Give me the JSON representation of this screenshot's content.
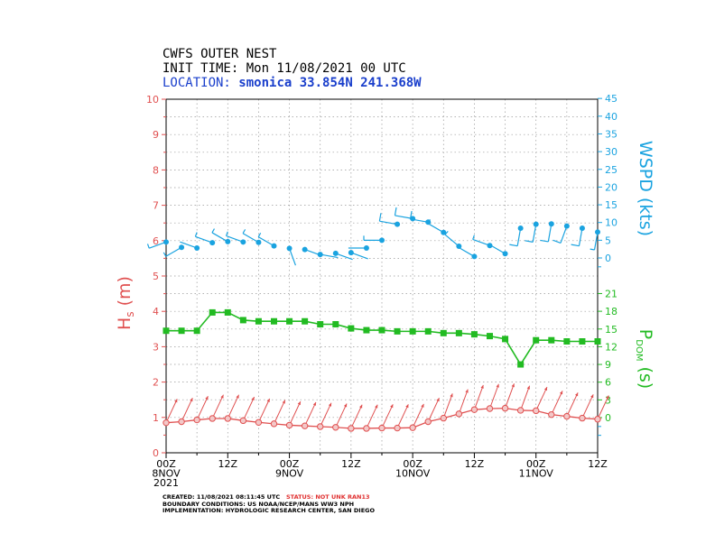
{
  "header": {
    "line1": "CWFS OUTER NEST",
    "line2": "INIT TIME: Mon 11/08/2021 00 UTC",
    "location_label": "LOCATION:",
    "location_name": "smonica",
    "location_coords": "33.854N 241.368W"
  },
  "footer": {
    "created": "CREATED: 11/08/2021 08:11:45 UTC",
    "status": "STATUS: NOT UNK RAN13",
    "boundary": "BOUNDARY CONDITIONS: US NOAA/NCEP/MANS WW3 NPH",
    "implementation": "IMPLEMENTATION: HYDROLOGIC RESEARCH CENTER, SAN DIEGO"
  },
  "colors": {
    "hs": "#e05050",
    "wind": "#1aa3e0",
    "period": "#22bb22",
    "location": "#1a3fcc",
    "grid": "#999999"
  },
  "chart_data": {
    "type": "line",
    "x_tick_labels": [
      {
        "hour": 0,
        "lines": [
          "00Z",
          "8NOV",
          "2021"
        ]
      },
      {
        "hour": 12,
        "lines": [
          "12Z"
        ]
      },
      {
        "hour": 24,
        "lines": [
          "00Z",
          "9NOV"
        ]
      },
      {
        "hour": 36,
        "lines": [
          "12Z"
        ]
      },
      {
        "hour": 48,
        "lines": [
          "00Z",
          "10NOV"
        ]
      },
      {
        "hour": 60,
        "lines": [
          "12Z"
        ]
      },
      {
        "hour": 72,
        "lines": [
          "00Z",
          "11NOV"
        ]
      },
      {
        "hour": 84,
        "lines": [
          "12Z"
        ]
      }
    ],
    "xlim_hours": [
      0,
      84
    ],
    "left_axis": {
      "label": "H",
      "label_sub": "s",
      "label_unit": "(m)",
      "ylim": [
        0,
        10
      ],
      "ticks": [
        0,
        1,
        2,
        3,
        4,
        5,
        6,
        7,
        8,
        9,
        10
      ]
    },
    "period_axis": {
      "label": "P",
      "label_sub": "DOM",
      "label_unit": "(s)",
      "ticks": [
        "0",
        "3",
        "6",
        "9",
        "12",
        "15",
        "18",
        "21"
      ]
    },
    "wind_axis": {
      "label": "WSPD",
      "label_unit": "(kts)",
      "ticks": [
        "0",
        "5",
        "10",
        "15",
        "20",
        "25",
        "30",
        "35",
        "40",
        "45"
      ]
    },
    "series": [
      {
        "name": "Hs",
        "hours": [
          0,
          3,
          6,
          9,
          12,
          15,
          18,
          21,
          24,
          27,
          30,
          33,
          36,
          39,
          42,
          45,
          48,
          51,
          54,
          57,
          60,
          63,
          66,
          69,
          72,
          75,
          78,
          81,
          84
        ],
        "values": [
          0.85,
          0.88,
          0.93,
          0.97,
          0.97,
          0.91,
          0.86,
          0.82,
          0.78,
          0.76,
          0.74,
          0.72,
          0.69,
          0.69,
          0.7,
          0.7,
          0.71,
          0.88,
          0.98,
          1.1,
          1.22,
          1.25,
          1.26,
          1.2,
          1.19,
          1.08,
          1.03,
          0.98,
          0.95
        ],
        "arrow_direction_deg": [
          25,
          25,
          25,
          25,
          25,
          25,
          25,
          25,
          25,
          25,
          25,
          25,
          25,
          25,
          25,
          25,
          25,
          25,
          20,
          20,
          20,
          20,
          20,
          20,
          25,
          25,
          25,
          25,
          25
        ]
      },
      {
        "name": "Pdom",
        "hours": [
          0,
          3,
          6,
          9,
          12,
          15,
          18,
          21,
          24,
          27,
          30,
          33,
          36,
          39,
          42,
          45,
          48,
          51,
          54,
          57,
          60,
          63,
          66,
          69,
          72,
          75,
          78,
          81,
          84
        ],
        "values": [
          14.7,
          14.7,
          14.7,
          17.8,
          17.8,
          16.5,
          16.3,
          16.3,
          16.3,
          16.3,
          15.8,
          15.8,
          15.1,
          14.8,
          14.8,
          14.6,
          14.6,
          14.6,
          14.3,
          14.3,
          14.1,
          13.8,
          13.3,
          9.0,
          13.1,
          13.1,
          12.9,
          12.9,
          12.9
        ]
      },
      {
        "name": "WSPD",
        "hours": [
          0,
          3,
          6,
          9,
          12,
          15,
          18,
          21,
          24,
          27,
          30,
          33,
          36,
          39,
          42,
          45,
          48,
          51,
          54,
          57,
          60,
          63,
          66,
          69,
          72,
          75,
          78,
          81,
          84
        ],
        "values": [
          4.5,
          3.0,
          2.8,
          4.3,
          4.6,
          4.5,
          4.4,
          3.4,
          2.7,
          2.4,
          1.0,
          1.3,
          1.5,
          2.8,
          5.0,
          9.5,
          11.1,
          10.1,
          7.2,
          3.3,
          0.4,
          3.5,
          1.2,
          8.4,
          9.5,
          9.6,
          9.0,
          8.4,
          7.3
        ],
        "barb_direction_deg": [
          250,
          240,
          290,
          290,
          300,
          290,
          300,
          300,
          160,
          110,
          100,
          110,
          110,
          270,
          270,
          280,
          280,
          280,
          300,
          310,
          300,
          290,
          300,
          190,
          190,
          190,
          200,
          190,
          190
        ]
      }
    ]
  }
}
